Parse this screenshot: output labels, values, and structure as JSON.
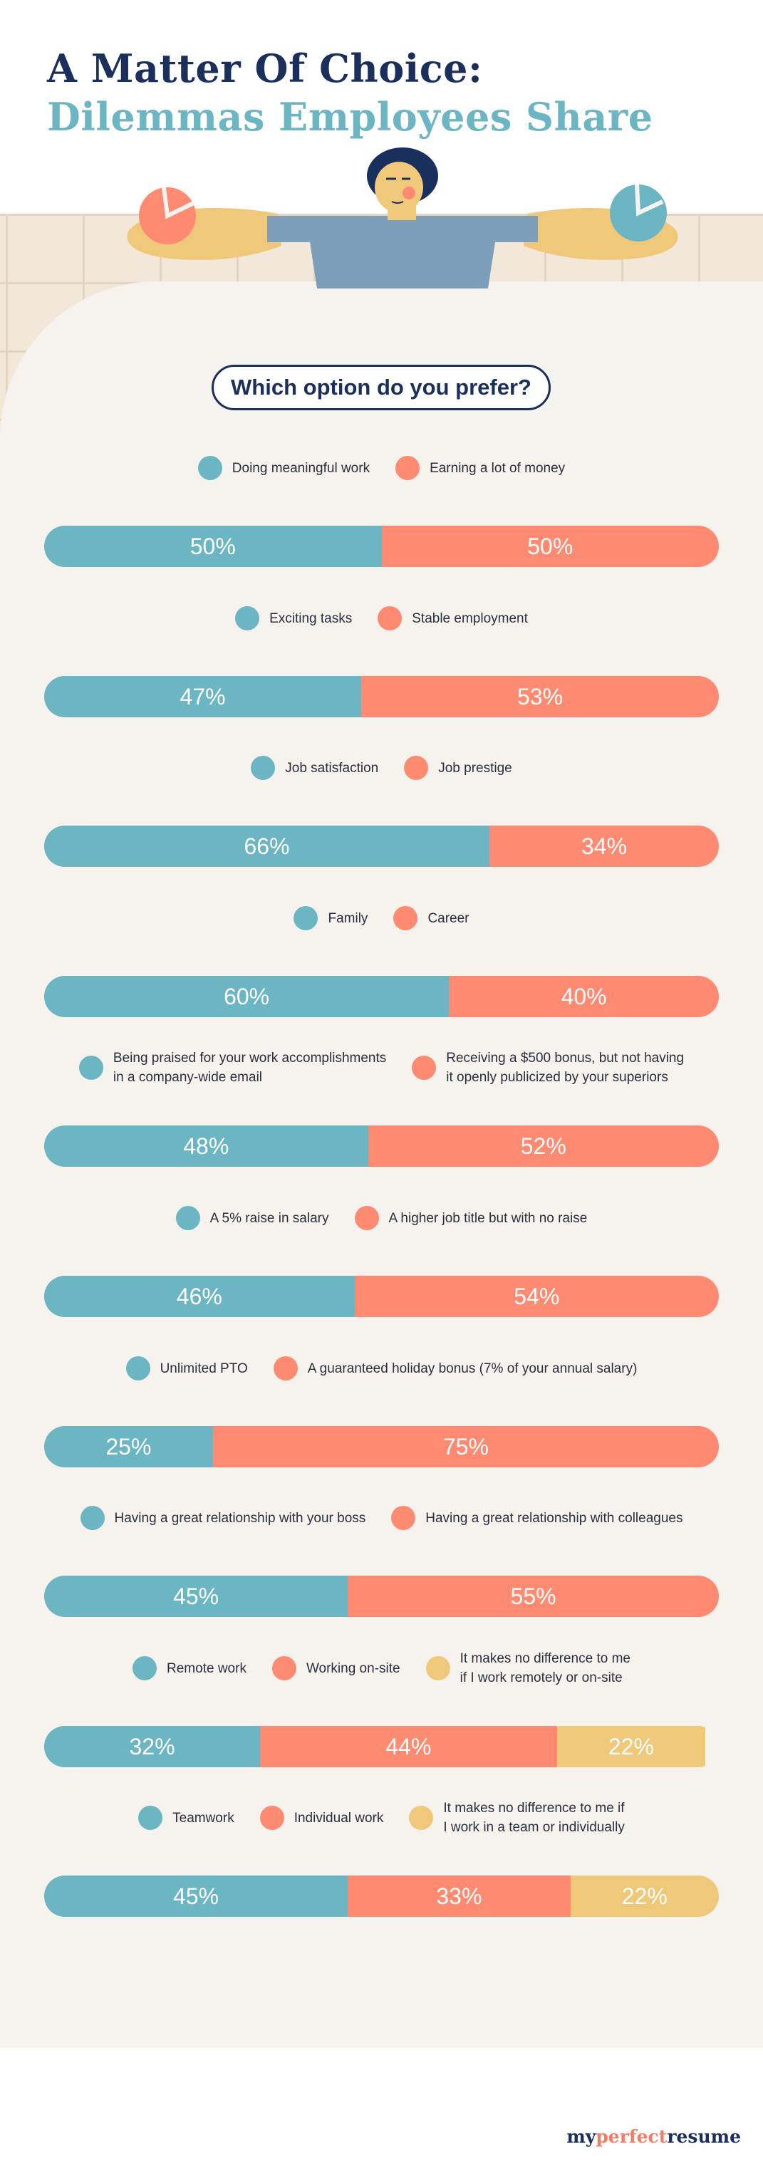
{
  "header": {
    "title_line1": "A Matter Of Choice:",
    "title_line2": "Dilemmas Employees Share"
  },
  "question": "Which option do you prefer?",
  "colors": {
    "blue": "#6cb5c3",
    "coral": "#fe8a72",
    "yellow": "#f0c87a",
    "navy": "#1b2f5c",
    "panel": "#f6f3ee",
    "tile": "#f2e7d8"
  },
  "chart_data": {
    "type": "bar",
    "orientation": "horizontal",
    "stacked": true,
    "unit": "%",
    "xlim": [
      0,
      100
    ],
    "rows": [
      {
        "options": [
          {
            "label": "Doing meaningful work",
            "value": 50,
            "color": "blue"
          },
          {
            "label": "Earning a lot of money",
            "value": 50,
            "color": "coral"
          }
        ]
      },
      {
        "options": [
          {
            "label": "Exciting tasks",
            "value": 47,
            "color": "blue"
          },
          {
            "label": "Stable employment",
            "value": 53,
            "color": "coral"
          }
        ]
      },
      {
        "options": [
          {
            "label": "Job satisfaction",
            "value": 66,
            "color": "blue"
          },
          {
            "label": "Job prestige",
            "value": 34,
            "color": "coral"
          }
        ]
      },
      {
        "options": [
          {
            "label": "Family",
            "value": 60,
            "color": "blue"
          },
          {
            "label": "Career",
            "value": 40,
            "color": "coral"
          }
        ]
      },
      {
        "options": [
          {
            "label": "Being praised for your work accomplishments\nin a company-wide email",
            "value": 48,
            "color": "blue"
          },
          {
            "label": "Receiving a $500 bonus, but not having\nit openly publicized by your superiors",
            "value": 52,
            "color": "coral"
          }
        ]
      },
      {
        "options": [
          {
            "label": "A 5% raise in salary",
            "value": 46,
            "color": "blue"
          },
          {
            "label": "A higher job title but with no raise",
            "value": 54,
            "color": "coral"
          }
        ]
      },
      {
        "options": [
          {
            "label": "Unlimited PTO",
            "value": 25,
            "color": "blue"
          },
          {
            "label": "A guaranteed holiday bonus (7% of your annual salary)",
            "value": 75,
            "color": "coral"
          }
        ]
      },
      {
        "options": [
          {
            "label": "Having a great relationship with your boss",
            "value": 45,
            "color": "blue"
          },
          {
            "label": "Having a great relationship with colleagues",
            "value": 55,
            "color": "coral"
          }
        ]
      },
      {
        "options": [
          {
            "label": "Remote work",
            "value": 32,
            "color": "blue"
          },
          {
            "label": "Working on-site",
            "value": 44,
            "color": "coral"
          },
          {
            "label": "It makes no difference to me\nif I work remotely or on-site",
            "value": 22,
            "color": "yellow"
          }
        ]
      },
      {
        "options": [
          {
            "label": "Teamwork",
            "value": 45,
            "color": "blue"
          },
          {
            "label": "Individual work",
            "value": 33,
            "color": "coral"
          },
          {
            "label": "It makes no difference to me if\nI work in a team or individually",
            "value": 22,
            "color": "yellow"
          }
        ]
      }
    ]
  },
  "footer": {
    "logo_part1": "my",
    "logo_part2": "perfect",
    "logo_part3": "resume"
  }
}
